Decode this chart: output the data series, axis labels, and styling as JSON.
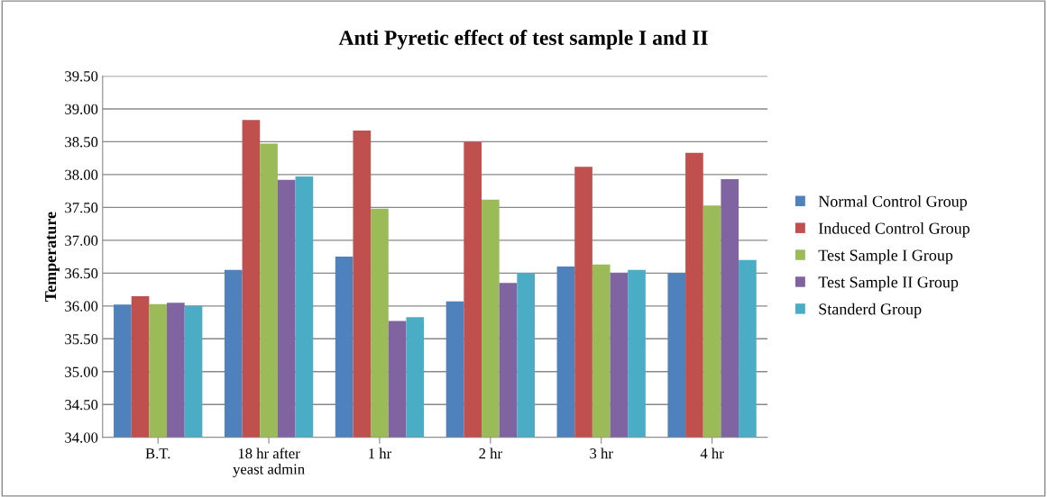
{
  "chart_data": {
    "type": "bar",
    "title": "Anti Pyretic effect of test sample I and II",
    "ylabel": "Temperature",
    "categories": [
      "B.T.",
      "18 hr after\nyeast admin",
      "1 hr",
      "2 hr",
      "3 hr",
      "4 hr"
    ],
    "series": [
      {
        "name": "Normal Control Group",
        "color": "#4f81bd",
        "values": [
          36.02,
          36.55,
          36.75,
          36.07,
          36.6,
          36.5
        ]
      },
      {
        "name": "Induced Control Group",
        "color": "#c0504d",
        "values": [
          36.15,
          38.83,
          38.67,
          38.5,
          38.12,
          38.33
        ]
      },
      {
        "name": "Test Sample I Group",
        "color": "#9bbb59",
        "values": [
          36.03,
          38.47,
          37.48,
          37.62,
          36.63,
          37.53
        ]
      },
      {
        "name": "Test Sample II Group",
        "color": "#8064a2",
        "values": [
          36.05,
          37.92,
          35.77,
          36.35,
          36.5,
          37.93
        ]
      },
      {
        "name": "Standerd Group",
        "color": "#4bacc6",
        "values": [
          36.0,
          37.97,
          35.83,
          36.5,
          36.55,
          36.7
        ]
      }
    ],
    "ylim": [
      34.0,
      39.5
    ],
    "yticks": [
      {
        "value": 34.0,
        "label": "34.00"
      },
      {
        "value": 34.5,
        "label": "34.50"
      },
      {
        "value": 35.0,
        "label": "35.00"
      },
      {
        "value": 35.5,
        "label": "35.50"
      },
      {
        "value": 36.0,
        "label": "36.00"
      },
      {
        "value": 36.5,
        "label": "36.50"
      },
      {
        "value": 37.0,
        "label": "37.00"
      },
      {
        "value": 37.5,
        "label": "37.50"
      },
      {
        "value": 38.0,
        "label": "38.00"
      },
      {
        "value": 38.5,
        "label": "38.50"
      },
      {
        "value": 39.0,
        "label": "39.00"
      },
      {
        "value": 39.5,
        "label": "39.50"
      }
    ],
    "grid": "y",
    "legend": "right"
  }
}
